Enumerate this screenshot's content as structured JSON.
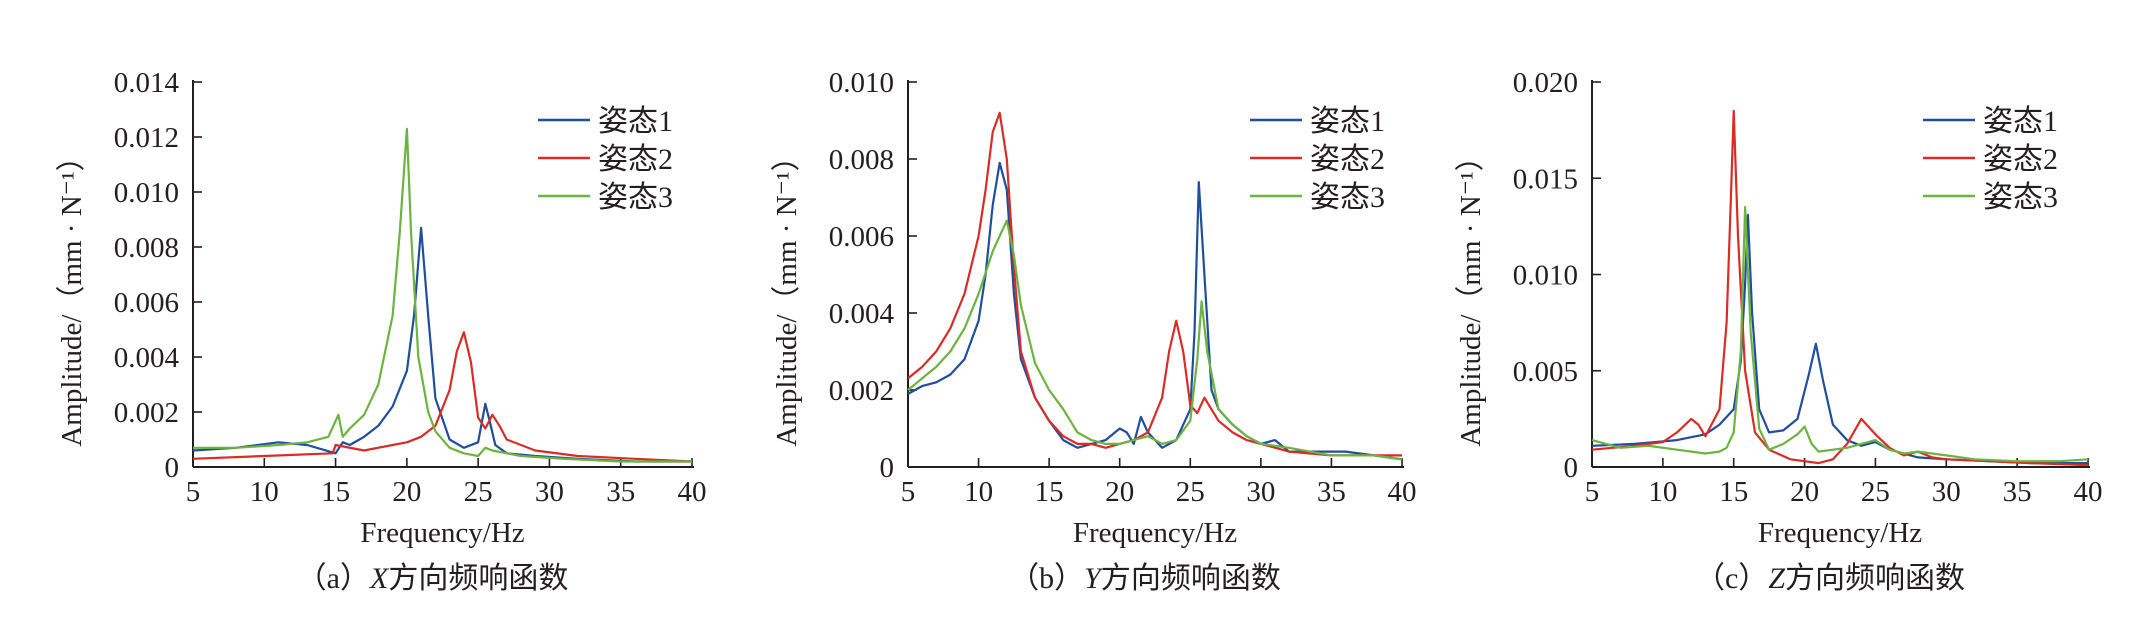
{
  "chart_data": [
    {
      "type": "line",
      "caption_prefix": "（a）",
      "caption_axis": "X",
      "caption_text": "方向频响函数",
      "xlabel": "Frequency/Hz",
      "ylabel": "Amplitude/（mm · N⁻¹）",
      "xlim": [
        5,
        40
      ],
      "ylim": [
        0,
        0.014
      ],
      "xticks": [
        "5",
        "10",
        "15",
        "20",
        "25",
        "30",
        "35",
        "40"
      ],
      "yticks": [
        "0",
        "0.002",
        "0.004",
        "0.006",
        "0.008",
        "0.010",
        "0.012",
        "0.014"
      ],
      "grid": false,
      "legend_position": "top-right",
      "series": [
        {
          "name": "姿态1",
          "color": "#1f4e9c",
          "x": [
            5,
            8,
            11,
            13,
            15,
            15.5,
            16,
            17,
            18,
            19,
            20,
            20.5,
            21,
            21.5,
            22,
            23,
            24,
            25,
            25.5,
            25.8,
            26.2,
            27,
            29,
            32,
            36,
            40
          ],
          "y": [
            0.0006,
            0.0007,
            0.0009,
            0.0008,
            0.0005,
            0.0009,
            0.0008,
            0.0011,
            0.0015,
            0.0022,
            0.0035,
            0.0055,
            0.0087,
            0.0055,
            0.0025,
            0.001,
            0.0007,
            0.0009,
            0.0023,
            0.0017,
            0.0008,
            0.0005,
            0.0004,
            0.0003,
            0.0002,
            0.0002
          ]
        },
        {
          "name": "姿态2",
          "color": "#d92c26",
          "x": [
            5,
            10,
            14.8,
            15,
            17,
            19,
            20,
            21,
            22,
            23,
            23.5,
            24,
            24.5,
            25,
            25.5,
            26,
            26.5,
            27,
            29,
            32,
            36,
            40
          ],
          "y": [
            0.0003,
            0.0004,
            0.0005,
            0.0008,
            0.0006,
            0.0008,
            0.0009,
            0.0011,
            0.0015,
            0.0028,
            0.0042,
            0.0049,
            0.0038,
            0.0018,
            0.0014,
            0.0019,
            0.0015,
            0.001,
            0.0006,
            0.0004,
            0.0003,
            0.0002
          ]
        },
        {
          "name": "姿态3",
          "color": "#6cb33f",
          "x": [
            5,
            8,
            11,
            13,
            14.5,
            15.2,
            15.5,
            16,
            17,
            18,
            19,
            19.5,
            20,
            20.3,
            20.8,
            21.5,
            22,
            23,
            24,
            25,
            25.5,
            26,
            28,
            31,
            35,
            40
          ],
          "y": [
            0.0007,
            0.0007,
            0.0008,
            0.0009,
            0.0011,
            0.0019,
            0.0011,
            0.0014,
            0.0019,
            0.003,
            0.0055,
            0.0085,
            0.0123,
            0.0085,
            0.004,
            0.002,
            0.0013,
            0.0007,
            0.0005,
            0.0004,
            0.0007,
            0.0006,
            0.0004,
            0.0003,
            0.0002,
            0.0002
          ]
        }
      ]
    },
    {
      "type": "line",
      "caption_prefix": "（b）",
      "caption_axis": "Y",
      "caption_text": "方向频响函数",
      "xlabel": "Frequency/Hz",
      "ylabel": "Amplitude/（mm · N⁻¹）",
      "xlim": [
        5,
        40
      ],
      "ylim": [
        0,
        0.01
      ],
      "xticks": [
        "5",
        "10",
        "15",
        "20",
        "25",
        "30",
        "35",
        "40"
      ],
      "yticks": [
        "0",
        "0.002",
        "0.004",
        "0.006",
        "0.008",
        "0.010"
      ],
      "grid": false,
      "legend_position": "top-right",
      "series": [
        {
          "name": "姿态1",
          "color": "#1f4e9c",
          "x": [
            5,
            6,
            7,
            8,
            9,
            10,
            10.5,
            11,
            11.5,
            12,
            12.5,
            13,
            14,
            15,
            16,
            17,
            18,
            19,
            20,
            20.5,
            21,
            21.5,
            22,
            23,
            24,
            25,
            25.3,
            25.6,
            26,
            26.5,
            27,
            28,
            29,
            30,
            31,
            32,
            34,
            36,
            38,
            40
          ],
          "y": [
            0.0019,
            0.0021,
            0.0022,
            0.0024,
            0.0028,
            0.0038,
            0.005,
            0.0068,
            0.0079,
            0.0072,
            0.0045,
            0.0028,
            0.0018,
            0.0012,
            0.0007,
            0.0005,
            0.0006,
            0.0007,
            0.001,
            0.0009,
            0.0006,
            0.0013,
            0.0009,
            0.0005,
            0.0007,
            0.0015,
            0.0035,
            0.0074,
            0.005,
            0.002,
            0.0015,
            0.0011,
            0.0008,
            0.0006,
            0.0007,
            0.0004,
            0.0004,
            0.0004,
            0.0003,
            0.0002
          ]
        },
        {
          "name": "姿态2",
          "color": "#d92c26",
          "x": [
            5,
            6,
            7,
            8,
            9,
            10,
            10.5,
            11,
            11.5,
            12,
            12.5,
            13,
            14,
            15,
            16,
            17,
            18,
            19,
            20,
            21,
            22,
            23,
            23.5,
            24,
            24.5,
            25,
            25.5,
            26,
            27,
            28,
            29,
            30,
            32,
            35,
            38,
            40
          ],
          "y": [
            0.0023,
            0.0026,
            0.003,
            0.0036,
            0.0045,
            0.006,
            0.0072,
            0.0087,
            0.0092,
            0.008,
            0.0052,
            0.003,
            0.0018,
            0.0012,
            0.0008,
            0.0006,
            0.0006,
            0.0005,
            0.0006,
            0.0007,
            0.0009,
            0.0018,
            0.003,
            0.0038,
            0.003,
            0.0016,
            0.0014,
            0.0018,
            0.0012,
            0.0009,
            0.0007,
            0.0006,
            0.0004,
            0.0003,
            0.0003,
            0.0003
          ]
        },
        {
          "name": "姿态3",
          "color": "#6cb33f",
          "x": [
            5,
            6,
            7,
            8,
            9,
            10,
            11,
            11.5,
            12,
            12.5,
            13,
            14,
            15,
            16,
            17,
            18,
            19,
            20,
            21,
            22,
            23,
            24,
            25,
            25.5,
            25.8,
            26.2,
            27,
            28,
            29,
            30,
            32,
            35,
            38,
            40
          ],
          "y": [
            0.002,
            0.0023,
            0.0026,
            0.003,
            0.0036,
            0.0045,
            0.0056,
            0.006,
            0.0064,
            0.0055,
            0.0042,
            0.0027,
            0.002,
            0.0015,
            0.0009,
            0.0007,
            0.0006,
            0.0006,
            0.0007,
            0.0008,
            0.0006,
            0.0007,
            0.0012,
            0.0028,
            0.0043,
            0.003,
            0.0015,
            0.0011,
            0.0008,
            0.0006,
            0.0005,
            0.0003,
            0.0003,
            0.0002
          ]
        }
      ]
    },
    {
      "type": "line",
      "caption_prefix": "（c）",
      "caption_axis": "Z",
      "caption_text": "方向频响函数",
      "xlabel": "Frequency/Hz",
      "ylabel": "Amplitude/（mm · N⁻¹）",
      "xlim": [
        5,
        40
      ],
      "ylim": [
        0,
        0.02
      ],
      "xticks": [
        "5",
        "10",
        "15",
        "20",
        "25",
        "30",
        "35",
        "40"
      ],
      "yticks": [
        "0",
        "0.005",
        "0.010",
        "0.015",
        "0.020"
      ],
      "grid": false,
      "legend_position": "top-right",
      "series": [
        {
          "name": "姿态1",
          "color": "#1f4e9c",
          "x": [
            5,
            8,
            11,
            13,
            14,
            15,
            15.5,
            15.8,
            16,
            16.3,
            16.8,
            17.5,
            18.5,
            19.5,
            20.3,
            20.8,
            21.3,
            22,
            23,
            24,
            25,
            26,
            28,
            30,
            33,
            36,
            40
          ],
          "y": [
            0.0011,
            0.0012,
            0.0014,
            0.0017,
            0.0022,
            0.003,
            0.0055,
            0.0095,
            0.0131,
            0.008,
            0.003,
            0.0018,
            0.0019,
            0.0025,
            0.0048,
            0.0064,
            0.0045,
            0.0022,
            0.0014,
            0.0011,
            0.0013,
            0.0009,
            0.0005,
            0.0004,
            0.0003,
            0.0002,
            0.0002
          ]
        },
        {
          "name": "姿态2",
          "color": "#d92c26",
          "x": [
            5,
            8,
            10,
            11,
            12,
            12.5,
            13,
            14,
            14.5,
            14.8,
            15,
            15.3,
            15.8,
            16.5,
            17.5,
            19,
            21,
            22,
            23,
            24,
            25,
            26,
            27,
            28,
            29,
            30,
            33,
            36,
            40
          ],
          "y": [
            0.0009,
            0.0011,
            0.0013,
            0.0018,
            0.0025,
            0.0022,
            0.0016,
            0.003,
            0.0075,
            0.014,
            0.0185,
            0.012,
            0.005,
            0.0018,
            0.0009,
            0.0004,
            0.0002,
            0.0004,
            0.0012,
            0.0025,
            0.0017,
            0.001,
            0.0006,
            0.0008,
            0.0005,
            0.0004,
            0.0003,
            0.0002,
            0.0001
          ]
        },
        {
          "name": "姿态3",
          "color": "#6cb33f",
          "x": [
            5,
            7,
            9,
            11,
            13,
            14,
            14.5,
            15,
            15.5,
            15.8,
            16.2,
            16.8,
            17.5,
            18.5,
            19.5,
            20,
            20.5,
            21,
            22,
            23,
            24,
            25,
            26,
            27,
            28,
            30,
            32,
            35,
            38,
            40
          ],
          "y": [
            0.0014,
            0.001,
            0.0011,
            0.0009,
            0.0007,
            0.0008,
            0.001,
            0.0018,
            0.006,
            0.0135,
            0.007,
            0.002,
            0.0009,
            0.0012,
            0.0017,
            0.0021,
            0.0012,
            0.0008,
            0.0009,
            0.001,
            0.0012,
            0.0014,
            0.0009,
            0.0007,
            0.0008,
            0.0006,
            0.0004,
            0.0003,
            0.0003,
            0.0004
          ]
        }
      ]
    }
  ]
}
